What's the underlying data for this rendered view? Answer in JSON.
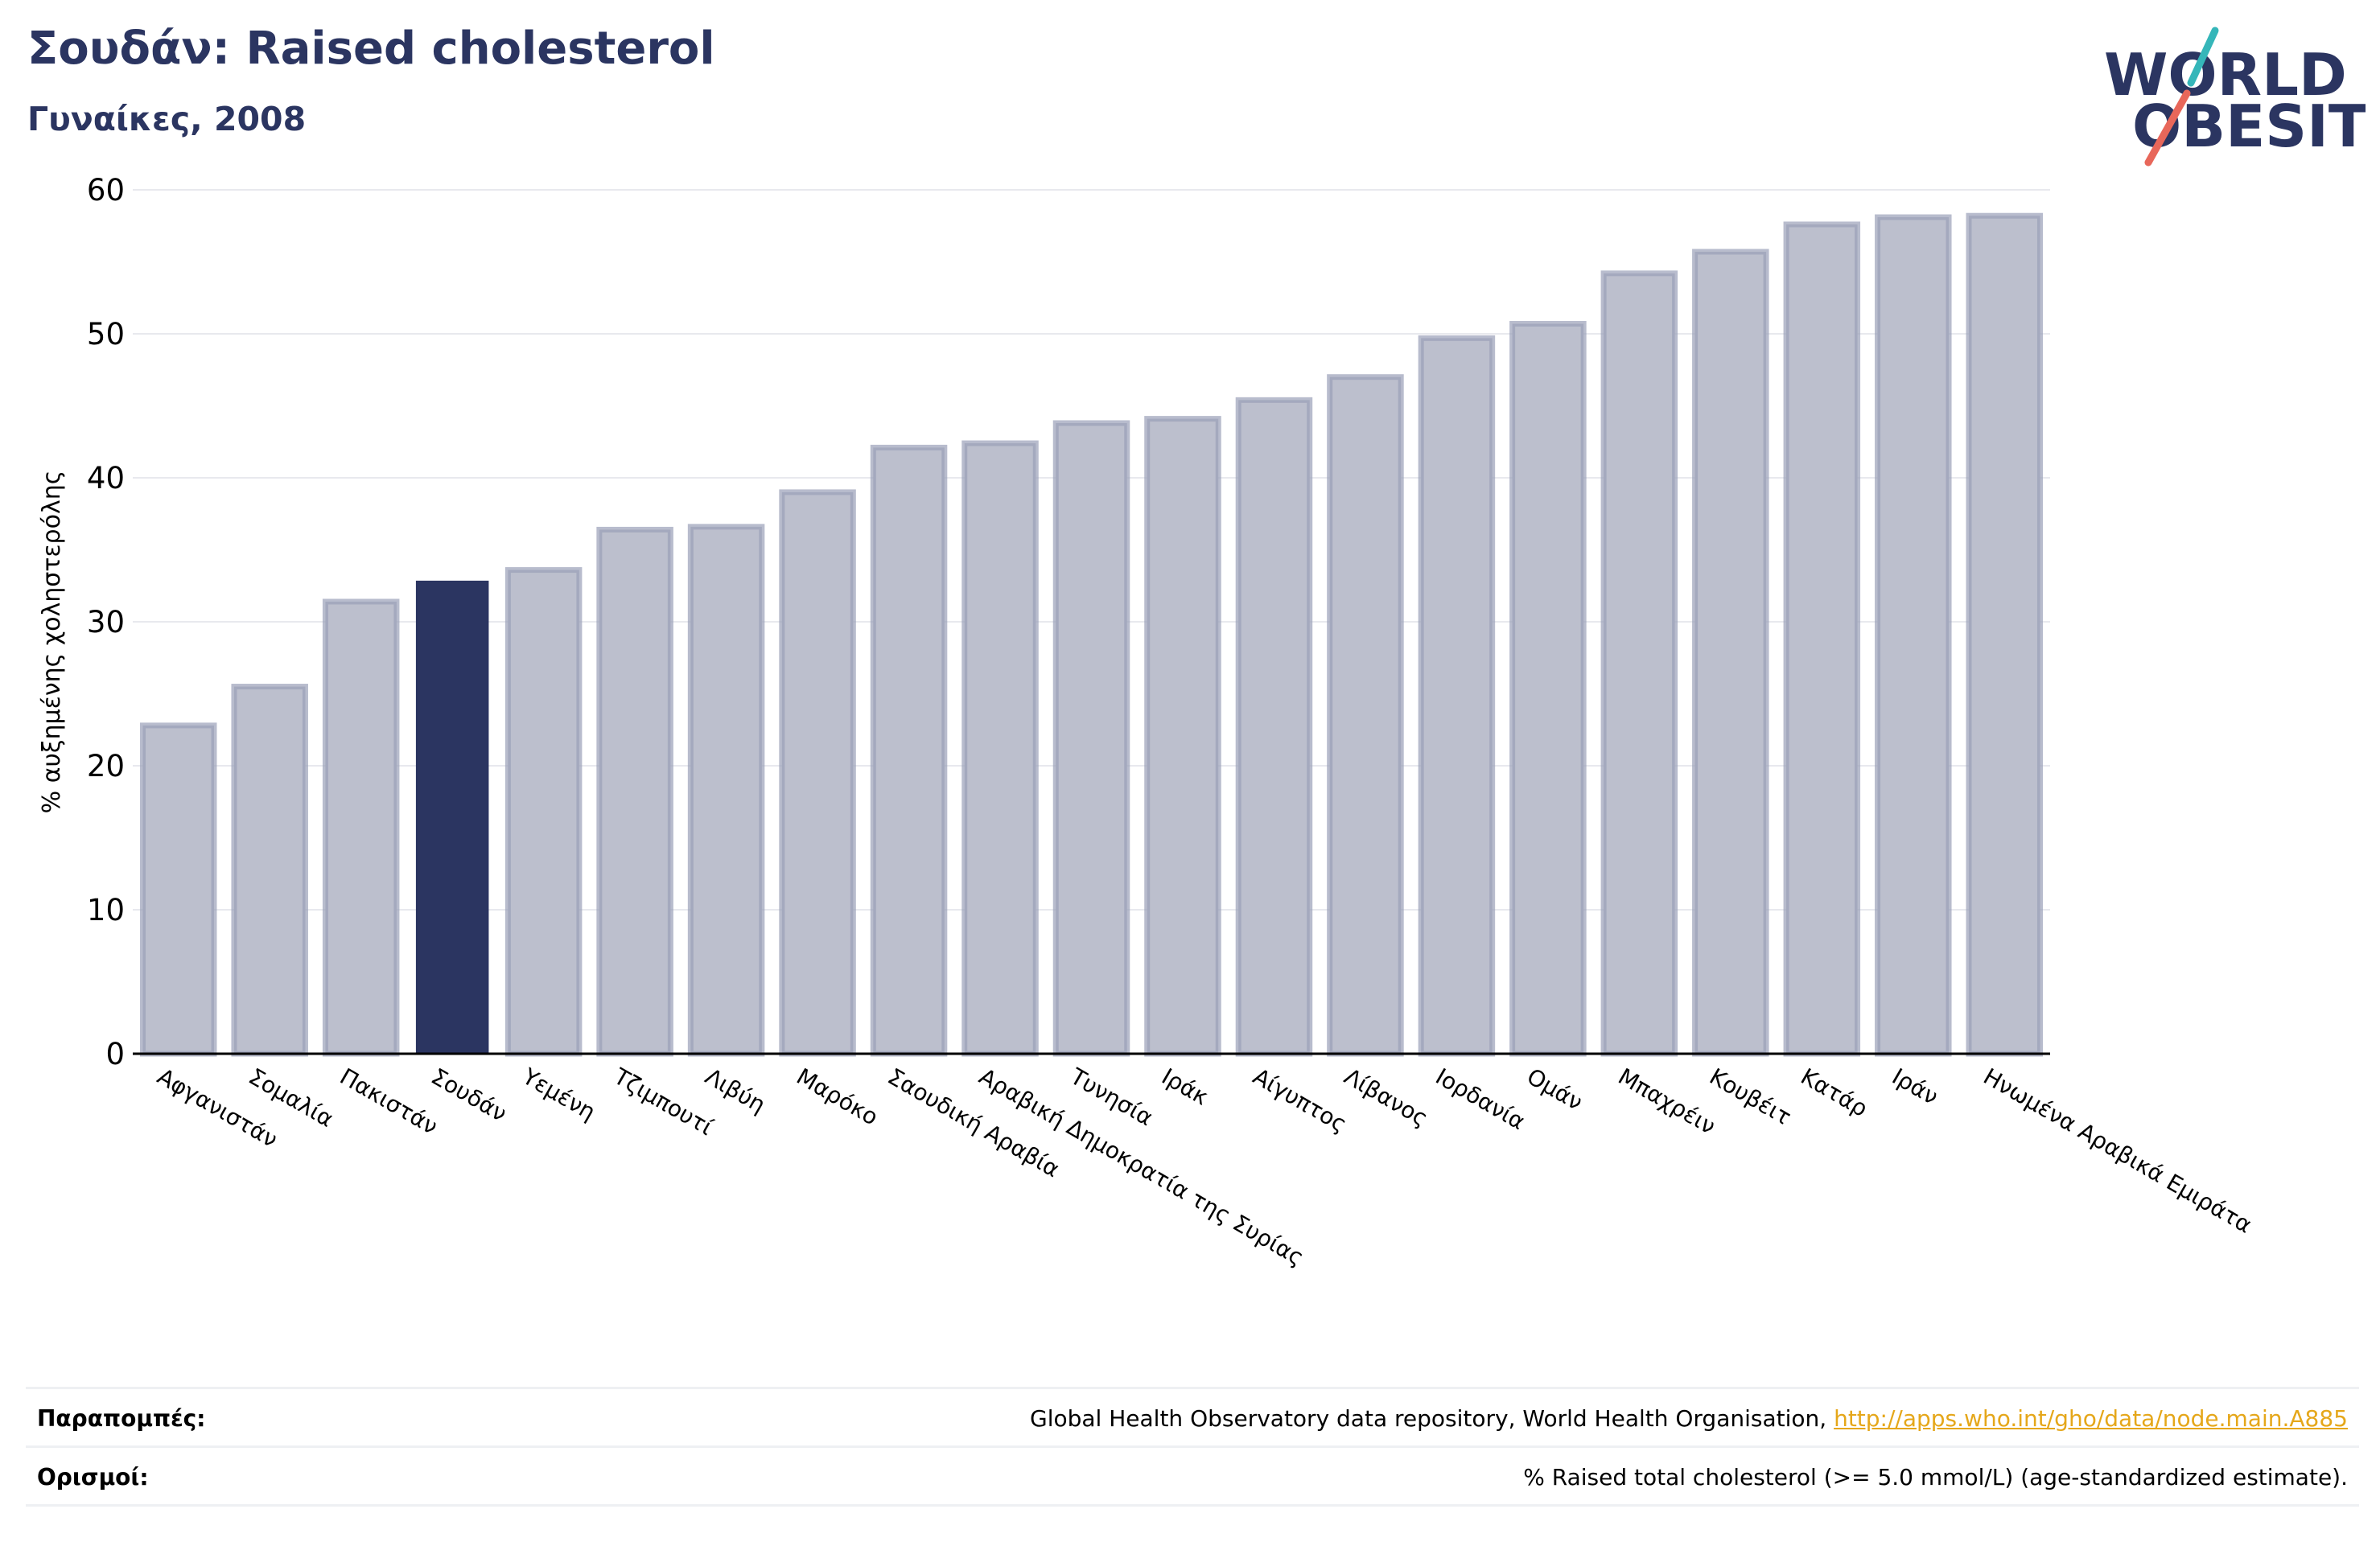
{
  "header": {
    "title": "Σουδάν: Raised cholesterol",
    "subtitle": "Γυναίκες, 2008"
  },
  "logo": {
    "line1": "WORLD",
    "line2": "OBESITY",
    "colors": {
      "navy": "#2b3561",
      "teal": "#35b6b9",
      "coral": "#e8675a"
    }
  },
  "chart_data": {
    "type": "bar",
    "title": "Σουδάν: Raised cholesterol",
    "subtitle": "Γυναίκες, 2008",
    "xlabel": "",
    "ylabel": "% αυξημένης χοληστερόλης",
    "ylim": [
      0,
      60
    ],
    "yticks": [
      0,
      10,
      20,
      30,
      40,
      50,
      60
    ],
    "grid": true,
    "highlight": "Σουδάν",
    "categories": [
      "Αφγανιστάν",
      "Σομαλία",
      "Πακιστάν",
      "Σουδάν",
      "Υεμένη",
      "Τζιμπουτί",
      "Λιβύη",
      "Μαρόκο",
      "Σαουδική Αραβία",
      "Αραβική Δημοκρατία της Συρίας",
      "Τυνησία",
      "Ιράκ",
      "Αίγυπτος",
      "Λίβανος",
      "Ιορδανία",
      "Ομάν",
      "Μπαχρέιν",
      "Κουβέιτ",
      "Κατάρ",
      "Ιράν",
      "Ηνωμένα Αραβικά Εμιράτα"
    ],
    "values": [
      22.8,
      25.5,
      31.4,
      32.8,
      33.6,
      36.4,
      36.6,
      39.0,
      42.1,
      42.4,
      43.8,
      44.1,
      45.4,
      47.0,
      49.7,
      50.7,
      54.2,
      55.7,
      57.6,
      58.1,
      58.2
    ],
    "colors": {
      "default_fill": "#bcbfcd",
      "default_stroke": "#9aa0b8",
      "highlight_fill": "#2b3561"
    }
  },
  "footer": {
    "references_label": "Παραπομπές:",
    "references_text": "Global Health Observatory data repository, World Health Organisation, ",
    "references_link": "http://apps.who.int/gho/data/node.main.A885",
    "definitions_label": "Ορισμοί:",
    "definitions_text": "% Raised total cholesterol (>= 5.0 mmol/L) (age-standardized estimate)."
  }
}
